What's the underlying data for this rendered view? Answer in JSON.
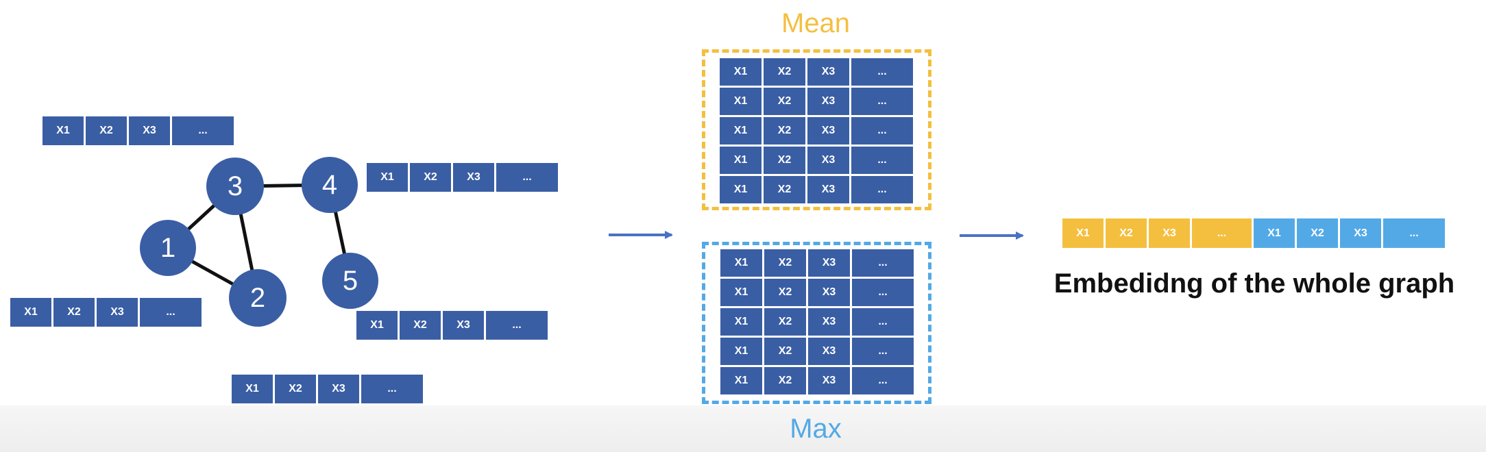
{
  "colors": {
    "node": "#3a5ea4",
    "feature_cell": "#3a5ea4",
    "mean": "#f4bf3f",
    "max": "#53a9e6",
    "edge": "#111111"
  },
  "feature_labels": [
    "X1",
    "X2",
    "X3",
    "..."
  ],
  "nodes": [
    {
      "id": "1",
      "label": "1"
    },
    {
      "id": "2",
      "label": "2"
    },
    {
      "id": "3",
      "label": "3"
    },
    {
      "id": "4",
      "label": "4"
    },
    {
      "id": "5",
      "label": "5"
    }
  ],
  "edges": [
    [
      "1",
      "3"
    ],
    [
      "1",
      "2"
    ],
    [
      "3",
      "2"
    ],
    [
      "3",
      "4"
    ],
    [
      "4",
      "5"
    ]
  ],
  "pooling": {
    "mean_label": "Mean",
    "max_label": "Max",
    "row_count": 5
  },
  "embedding": {
    "caption": "Embedidng of the whole graph",
    "segments": [
      {
        "source": "mean",
        "cells": [
          "X1",
          "X2",
          "X3",
          "..."
        ]
      },
      {
        "source": "max",
        "cells": [
          "X1",
          "X2",
          "X3",
          "..."
        ]
      }
    ]
  }
}
